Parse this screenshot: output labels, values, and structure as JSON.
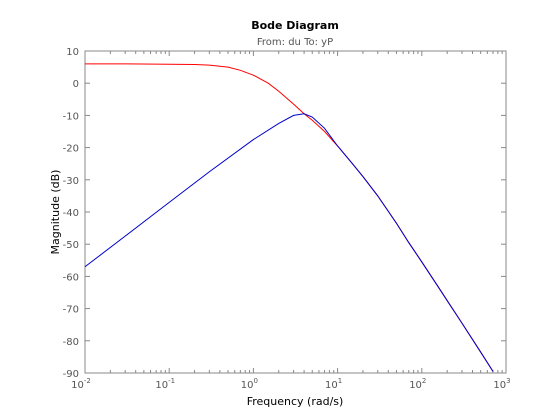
{
  "chart_data": {
    "type": "line",
    "title": "Bode Diagram",
    "subtitle": "From: du  To: yP",
    "xlabel": "Frequency  (rad/s)",
    "ylabel": "Magnitude (dB)",
    "xscale": "log",
    "xlim": [
      0.01,
      1000
    ],
    "ylim": [
      -90,
      10
    ],
    "x_ticks": [
      {
        "base": "10",
        "exp": "-2",
        "value": 0.01
      },
      {
        "base": "10",
        "exp": "-1",
        "value": 0.1
      },
      {
        "base": "10",
        "exp": "0",
        "value": 1
      },
      {
        "base": "10",
        "exp": "1",
        "value": 10
      },
      {
        "base": "10",
        "exp": "2",
        "value": 100
      },
      {
        "base": "10",
        "exp": "3",
        "value": 1000
      }
    ],
    "y_ticks": [
      "10",
      "0",
      "-10",
      "-20",
      "-30",
      "-40",
      "-50",
      "-60",
      "-70",
      "-80",
      "-90"
    ],
    "grid": false,
    "series": [
      {
        "color": "#ff0000",
        "x": [
          0.01,
          0.03,
          0.1,
          0.2,
          0.3,
          0.5,
          0.7,
          1,
          1.5,
          2,
          3,
          4,
          5,
          7,
          10,
          15,
          20,
          30,
          50,
          70,
          100,
          150,
          200,
          300,
          500,
          700
        ],
        "y": [
          6.0,
          6.0,
          5.9,
          5.8,
          5.6,
          5.0,
          4.0,
          2.5,
          0.0,
          -2.5,
          -6.5,
          -9.5,
          -11.5,
          -15.0,
          -19.5,
          -25.0,
          -29.0,
          -35.0,
          -43.5,
          -49.5,
          -55.5,
          -62.5,
          -67.5,
          -74.5,
          -83.5,
          -89.5
        ]
      },
      {
        "color": "#0000cc",
        "x": [
          0.01,
          0.03,
          0.1,
          0.3,
          1,
          2,
          3,
          4,
          5,
          7,
          10,
          15,
          20,
          30,
          50,
          70,
          100,
          150,
          200,
          300,
          500,
          700
        ],
        "y": [
          -57.0,
          -47.5,
          -37.0,
          -27.5,
          -17.5,
          -12.5,
          -10.0,
          -9.5,
          -10.5,
          -14.0,
          -19.5,
          -25.0,
          -29.0,
          -35.0,
          -43.5,
          -49.5,
          -55.5,
          -62.5,
          -67.5,
          -74.5,
          -83.5,
          -89.5
        ]
      }
    ]
  }
}
